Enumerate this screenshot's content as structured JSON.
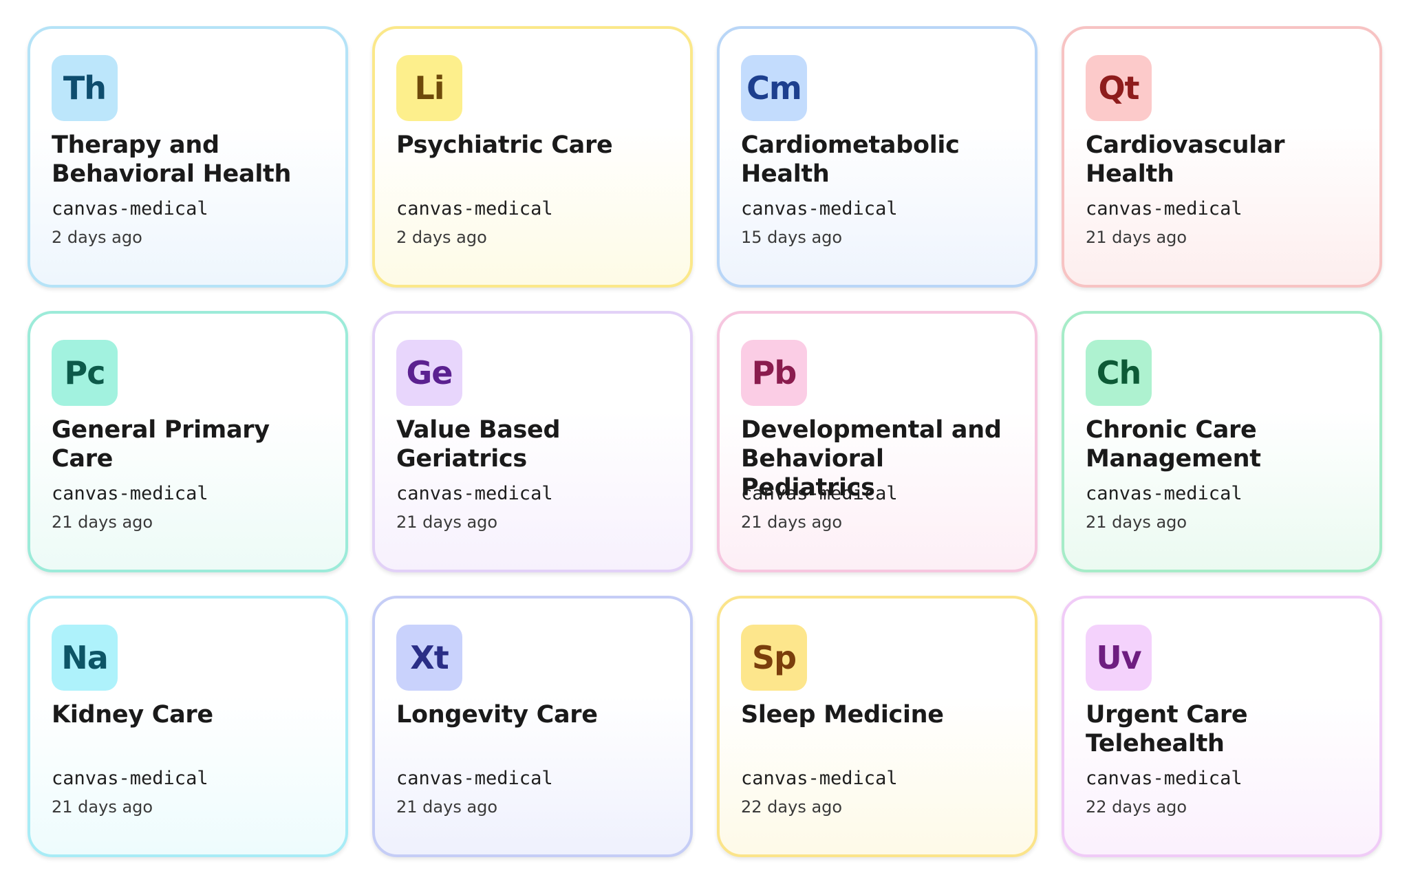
{
  "cards": [
    {
      "abbr": "Th",
      "title": "Therapy and Behavioral Health",
      "owner": "canvas-medical",
      "updated": "2 days ago",
      "colors": {
        "border": "#b5e3f7",
        "tint": "#eef6fd",
        "badge_bg": "#bce6fb",
        "badge_fg": "#0e4d6e"
      }
    },
    {
      "abbr": "Li",
      "title": "Psychiatric Care",
      "owner": "canvas-medical",
      "updated": "2 days ago",
      "colors": {
        "border": "#fbe88a",
        "tint": "#fefbe6",
        "badge_bg": "#fdef8c",
        "badge_fg": "#6e4a0a"
      }
    },
    {
      "abbr": "Cm",
      "title": "Cardiometabolic Health",
      "owner": "canvas-medical",
      "updated": "15 days ago",
      "colors": {
        "border": "#b9d6f7",
        "tint": "#eef4fd",
        "badge_bg": "#c3dcfd",
        "badge_fg": "#1d3f8e"
      }
    },
    {
      "abbr": "Qt",
      "title": "Cardiovascular Health",
      "owner": "canvas-medical",
      "updated": "21 days ago",
      "colors": {
        "border": "#f7c3c3",
        "tint": "#fdeeee",
        "badge_bg": "#fccaca",
        "badge_fg": "#8e1c1c"
      }
    },
    {
      "abbr": "Pc",
      "title": "General Primary Care",
      "owner": "canvas-medical",
      "updated": "21 days ago",
      "colors": {
        "border": "#9cebd9",
        "tint": "#edfbf7",
        "badge_bg": "#a2f2df",
        "badge_fg": "#0d5a4a"
      }
    },
    {
      "abbr": "Ge",
      "title": "Value Based Geriatrics",
      "owner": "canvas-medical",
      "updated": "21 days ago",
      "colors": {
        "border": "#e2d1f7",
        "tint": "#f7f1fd",
        "badge_bg": "#e8d6fc",
        "badge_fg": "#5b2190"
      }
    },
    {
      "abbr": "Pb",
      "title": "Developmental and Behavioral Pediatrics",
      "owner": "canvas-medical",
      "updated": "21 days ago",
      "colors": {
        "border": "#f6c6df",
        "tint": "#fdeff6",
        "badge_bg": "#fbcde5",
        "badge_fg": "#8a1c4e"
      }
    },
    {
      "abbr": "Ch",
      "title": "Chronic Care Management",
      "owner": "canvas-medical",
      "updated": "21 days ago",
      "colors": {
        "border": "#a6ecc8",
        "tint": "#ebfaf1",
        "badge_bg": "#aef2d0",
        "badge_fg": "#0d5a36"
      }
    },
    {
      "abbr": "Na",
      "title": "Kidney Care",
      "owner": "canvas-medical",
      "updated": "21 days ago",
      "colors": {
        "border": "#a8ecf6",
        "tint": "#eefcfd",
        "badge_bg": "#aef2fb",
        "badge_fg": "#0d5566"
      }
    },
    {
      "abbr": "Xt",
      "title": "Longevity Care",
      "owner": "canvas-medical",
      "updated": "21 days ago",
      "colors": {
        "border": "#c5cdf6",
        "tint": "#eff1fd",
        "badge_bg": "#c9d2fc",
        "badge_fg": "#2a2e86"
      }
    },
    {
      "abbr": "Sp",
      "title": "Sleep Medicine",
      "owner": "canvas-medical",
      "updated": "22 days ago",
      "colors": {
        "border": "#fbe48a",
        "tint": "#fefae8",
        "badge_bg": "#fde68c",
        "badge_fg": "#7a3e0c"
      }
    },
    {
      "abbr": "Uv",
      "title": "Urgent Care Telehealth",
      "owner": "canvas-medical",
      "updated": "22 days ago",
      "colors": {
        "border": "#f0cbf7",
        "tint": "#fbf1fd",
        "badge_bg": "#f4d2fc",
        "badge_fg": "#6e1d80"
      }
    }
  ]
}
